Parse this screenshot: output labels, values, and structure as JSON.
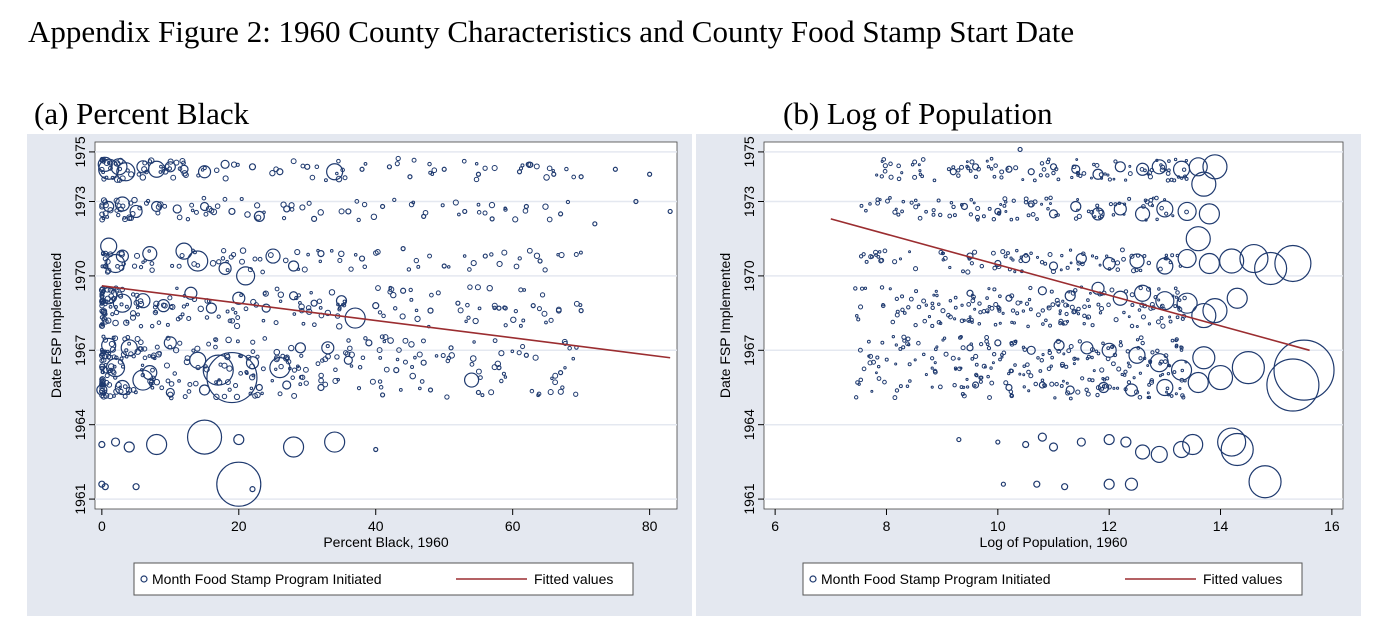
{
  "title": "Appendix Figure 2:  1960 County Characteristics and County Food Stamp Start Date",
  "colors": {
    "marker": "#1f3a6f",
    "fit": "#9b2d30",
    "panel_bg": "#e4e8f0",
    "plot_bg": "#ffffff",
    "grid": "#e4e8f0"
  },
  "chart_data": [
    {
      "subtitle": "(a) Percent Black",
      "type": "scatter",
      "xlabel": "Percent Black, 1960",
      "ylabel": "Date FSP Implemented",
      "xlim": [
        -1,
        84
      ],
      "ylim": [
        1960.6,
        1975.4
      ],
      "xticks": [
        0,
        20,
        40,
        60,
        80
      ],
      "yticks": [
        1961,
        1964,
        1967,
        1970,
        1973,
        1975
      ],
      "grid": true,
      "legend": {
        "placement": "bottom",
        "items": [
          "Month Food Stamp Program Initiated",
          "Fitted values"
        ]
      },
      "fitted_line": [
        [
          0,
          1969.6
        ],
        [
          83,
          1966.7
        ]
      ],
      "points": [
        [
          0.5,
          1974.5,
          7
        ],
        [
          1,
          1974.3,
          10
        ],
        [
          2.5,
          1974.4,
          8
        ],
        [
          3.5,
          1974.2,
          9
        ],
        [
          6,
          1974.4,
          6
        ],
        [
          8,
          1974.3,
          8
        ],
        [
          10,
          1974.4,
          5
        ],
        [
          12,
          1974.3,
          4
        ],
        [
          15,
          1974.2,
          6
        ],
        [
          18,
          1974.5,
          4
        ],
        [
          22,
          1974.4,
          3
        ],
        [
          26,
          1974.2,
          3
        ],
        [
          30,
          1974.4,
          2.5
        ],
        [
          34,
          1974.2,
          8
        ],
        [
          38,
          1974.3,
          2
        ],
        [
          42,
          1974.4,
          2
        ],
        [
          45,
          1974,
          2
        ],
        [
          50,
          1974.3,
          2
        ],
        [
          55,
          1974.1,
          2
        ],
        [
          61,
          1974.2,
          2
        ],
        [
          66,
          1974.1,
          2
        ],
        [
          70,
          1974,
          2
        ],
        [
          75,
          1974.3,
          2
        ],
        [
          80,
          1974.1,
          2
        ],
        [
          1,
          1972.8,
          5
        ],
        [
          3,
          1972.9,
          7
        ],
        [
          5,
          1972.6,
          6
        ],
        [
          8,
          1972.8,
          5
        ],
        [
          11,
          1972.7,
          4
        ],
        [
          15,
          1972.8,
          4
        ],
        [
          19,
          1972.6,
          3
        ],
        [
          23,
          1972.4,
          5
        ],
        [
          27,
          1972.7,
          3
        ],
        [
          31,
          1972.3,
          2.5
        ],
        [
          36,
          1972.6,
          2.5
        ],
        [
          41,
          1972.8,
          2
        ],
        [
          47,
          1972.4,
          2
        ],
        [
          53,
          1972.6,
          2
        ],
        [
          57,
          1972.3,
          2
        ],
        [
          62,
          1972.8,
          2
        ],
        [
          67,
          1972.5,
          2
        ],
        [
          72,
          1972.1,
          2
        ],
        [
          78,
          1973,
          2
        ],
        [
          83,
          1972.6,
          2
        ],
        [
          1,
          1971.2,
          8
        ],
        [
          2,
          1970.5,
          9
        ],
        [
          3,
          1970.8,
          6
        ],
        [
          7,
          1970.9,
          7
        ],
        [
          12,
          1971,
          8
        ],
        [
          14,
          1970.6,
          10
        ],
        [
          18,
          1970.3,
          6
        ],
        [
          21,
          1970,
          9
        ],
        [
          25,
          1970.8,
          7
        ],
        [
          28,
          1970.4,
          5
        ],
        [
          32,
          1970.9,
          3
        ],
        [
          38,
          1970.7,
          2.5
        ],
        [
          44,
          1971.1,
          2
        ],
        [
          50,
          1970.4,
          2
        ],
        [
          56,
          1970.8,
          2
        ],
        [
          64,
          1970.6,
          2
        ],
        [
          1,
          1969.2,
          8
        ],
        [
          3,
          1968.9,
          9
        ],
        [
          6,
          1969,
          7
        ],
        [
          9,
          1968.8,
          6
        ],
        [
          13,
          1969.3,
          6
        ],
        [
          16,
          1968.7,
          5
        ],
        [
          20,
          1969.1,
          6
        ],
        [
          24,
          1968.7,
          4
        ],
        [
          28,
          1969.2,
          4
        ],
        [
          31,
          1968.9,
          3
        ],
        [
          35,
          1969,
          5
        ],
        [
          37,
          1968.3,
          10
        ],
        [
          40,
          1968.8,
          3
        ],
        [
          44,
          1969.4,
          2.5
        ],
        [
          48,
          1968.6,
          2.5
        ],
        [
          52,
          1968.9,
          2
        ],
        [
          58,
          1968.7,
          2
        ],
        [
          63,
          1968.8,
          2
        ],
        [
          70,
          1968.6,
          2
        ],
        [
          1,
          1967.2,
          7
        ],
        [
          2,
          1966.3,
          9
        ],
        [
          4,
          1967.1,
          8
        ],
        [
          7,
          1966.1,
          7
        ],
        [
          10,
          1967.3,
          6
        ],
        [
          14,
          1966.6,
          8
        ],
        [
          17,
          1966.2,
          15
        ],
        [
          22,
          1966.5,
          6
        ],
        [
          26,
          1966.3,
          10
        ],
        [
          29,
          1967.1,
          5
        ],
        [
          33,
          1967.1,
          6
        ],
        [
          36,
          1966.6,
          4
        ],
        [
          39,
          1967.3,
          3
        ],
        [
          43,
          1966.2,
          2.5
        ],
        [
          47,
          1966.5,
          2.5
        ],
        [
          51,
          1967.1,
          2
        ],
        [
          54,
          1965.8,
          7
        ],
        [
          58,
          1966.3,
          2
        ],
        [
          62,
          1966.8,
          2
        ],
        [
          67,
          1966.1,
          2
        ],
        [
          0,
          1965.4,
          5
        ],
        [
          3,
          1965.5,
          7
        ],
        [
          6,
          1965.8,
          10
        ],
        [
          10,
          1965.3,
          4
        ],
        [
          15,
          1965.4,
          5
        ],
        [
          19,
          1965.9,
          25
        ],
        [
          23,
          1965.5,
          3
        ],
        [
          27,
          1965.6,
          4
        ],
        [
          32,
          1965.5,
          3
        ],
        [
          41,
          1965.2,
          2
        ],
        [
          48,
          1965.4,
          2
        ],
        [
          55,
          1965.3,
          2
        ],
        [
          0,
          1963.2,
          3
        ],
        [
          2,
          1963.3,
          4
        ],
        [
          4,
          1963.1,
          5
        ],
        [
          8,
          1963.2,
          10
        ],
        [
          15,
          1963.5,
          17
        ],
        [
          20,
          1963.4,
          5
        ],
        [
          28,
          1963.1,
          10
        ],
        [
          34,
          1963.3,
          10
        ],
        [
          40,
          1963,
          2
        ],
        [
          0,
          1961.6,
          3
        ],
        [
          0.5,
          1961.5,
          3
        ],
        [
          5,
          1961.5,
          3
        ],
        [
          20,
          1961.6,
          22
        ],
        [
          22,
          1961.4,
          2.5
        ]
      ]
    },
    {
      "subtitle": "(b) Log of Population",
      "type": "scatter",
      "xlabel": "Log of Population, 1960",
      "ylabel": "Date FSP Implemented",
      "xlim": [
        5.8,
        16.2
      ],
      "ylim": [
        1960.6,
        1975.4
      ],
      "xticks": [
        6,
        8,
        10,
        12,
        14,
        16
      ],
      "yticks": [
        1961,
        1964,
        1967,
        1970,
        1973,
        1975
      ],
      "grid": true,
      "legend": {
        "placement": "bottom",
        "items": [
          "Month Food Stamp Program Initiated",
          "Fitted values"
        ]
      },
      "fitted_line": [
        [
          7,
          1972.3
        ],
        [
          15.6,
          1967
        ]
      ],
      "points": [
        [
          9.2,
          1974.2,
          3
        ],
        [
          9.6,
          1974.4,
          3
        ],
        [
          10.2,
          1974.3,
          3
        ],
        [
          10.6,
          1974.2,
          3
        ],
        [
          11,
          1974.4,
          3
        ],
        [
          11.4,
          1974.3,
          4
        ],
        [
          11.8,
          1974.1,
          5
        ],
        [
          12.2,
          1974.4,
          5
        ],
        [
          12.6,
          1974.3,
          6
        ],
        [
          12.9,
          1974.4,
          7
        ],
        [
          13.3,
          1974.3,
          8
        ],
        [
          13.6,
          1974.4,
          9
        ],
        [
          13.9,
          1974.4,
          12
        ],
        [
          13.7,
          1973.7,
          12
        ],
        [
          10.4,
          1975.1,
          2
        ],
        [
          9.4,
          1972.8,
          3
        ],
        [
          10,
          1972.6,
          3
        ],
        [
          10.6,
          1972.9,
          3
        ],
        [
          11,
          1972.5,
          4
        ],
        [
          11.4,
          1972.8,
          5
        ],
        [
          11.8,
          1972.5,
          6
        ],
        [
          12.2,
          1972.7,
          6
        ],
        [
          12.6,
          1972.5,
          7
        ],
        [
          13,
          1972.7,
          8
        ],
        [
          13.4,
          1972.6,
          9
        ],
        [
          13.8,
          1972.5,
          10
        ],
        [
          9.5,
          1970.8,
          3
        ],
        [
          10,
          1970.5,
          3
        ],
        [
          10.5,
          1970.7,
          4
        ],
        [
          11,
          1970.4,
          4
        ],
        [
          11.5,
          1970.7,
          5
        ],
        [
          12,
          1970.5,
          6
        ],
        [
          12.5,
          1970.6,
          7
        ],
        [
          13,
          1970.4,
          8
        ],
        [
          13.4,
          1970.7,
          9
        ],
        [
          13.8,
          1970.5,
          10
        ],
        [
          14.2,
          1970.6,
          12
        ],
        [
          14.6,
          1970.7,
          14
        ],
        [
          14.9,
          1970.3,
          16
        ],
        [
          15.3,
          1970.5,
          18
        ],
        [
          13.6,
          1971.5,
          12
        ],
        [
          9.5,
          1969.3,
          3
        ],
        [
          10.2,
          1969.1,
          3
        ],
        [
          10.8,
          1969.4,
          4
        ],
        [
          11.3,
          1969.2,
          5
        ],
        [
          11.8,
          1969.5,
          6
        ],
        [
          12.2,
          1969.1,
          7
        ],
        [
          12.6,
          1969.3,
          8
        ],
        [
          13,
          1969,
          9
        ],
        [
          13.4,
          1968.9,
          10
        ],
        [
          13.9,
          1968.6,
          12
        ],
        [
          14.3,
          1969.1,
          10
        ],
        [
          13.7,
          1968.4,
          12
        ],
        [
          9.5,
          1967.1,
          3
        ],
        [
          10,
          1967.3,
          3
        ],
        [
          10.6,
          1967,
          4
        ],
        [
          11.1,
          1967.2,
          5
        ],
        [
          11.6,
          1967.1,
          6
        ],
        [
          12,
          1967,
          7
        ],
        [
          12.5,
          1966.8,
          8
        ],
        [
          12.9,
          1966.5,
          9
        ],
        [
          13.3,
          1966.2,
          10
        ],
        [
          13.7,
          1966.7,
          11
        ],
        [
          14,
          1965.9,
          12
        ],
        [
          14.5,
          1966.3,
          16
        ],
        [
          15.5,
          1966.2,
          30
        ],
        [
          15.3,
          1965.6,
          26
        ],
        [
          9.6,
          1965.6,
          3
        ],
        [
          10.2,
          1965.5,
          3
        ],
        [
          10.8,
          1965.6,
          3
        ],
        [
          11.3,
          1965.4,
          4
        ],
        [
          11.9,
          1965.5,
          5
        ],
        [
          12.4,
          1965.4,
          6
        ],
        [
          13,
          1965.5,
          8
        ],
        [
          13.6,
          1965.7,
          10
        ],
        [
          9.3,
          1963.4,
          2
        ],
        [
          10,
          1963.3,
          2
        ],
        [
          10.5,
          1963.2,
          3
        ],
        [
          10.8,
          1963.5,
          4
        ],
        [
          11,
          1963.1,
          4
        ],
        [
          11.5,
          1963.3,
          4
        ],
        [
          12,
          1963.4,
          5
        ],
        [
          12.3,
          1963.3,
          5
        ],
        [
          12.6,
          1962.9,
          7
        ],
        [
          12.9,
          1962.8,
          8
        ],
        [
          13.3,
          1963,
          8
        ],
        [
          13.5,
          1963.2,
          10
        ],
        [
          14.2,
          1963.3,
          14
        ],
        [
          14.3,
          1963,
          16
        ],
        [
          10.1,
          1961.6,
          2
        ],
        [
          10.7,
          1961.6,
          3
        ],
        [
          11.2,
          1961.5,
          3
        ],
        [
          12,
          1961.6,
          5
        ],
        [
          12.4,
          1961.6,
          6
        ],
        [
          14.8,
          1961.7,
          16
        ]
      ]
    }
  ]
}
